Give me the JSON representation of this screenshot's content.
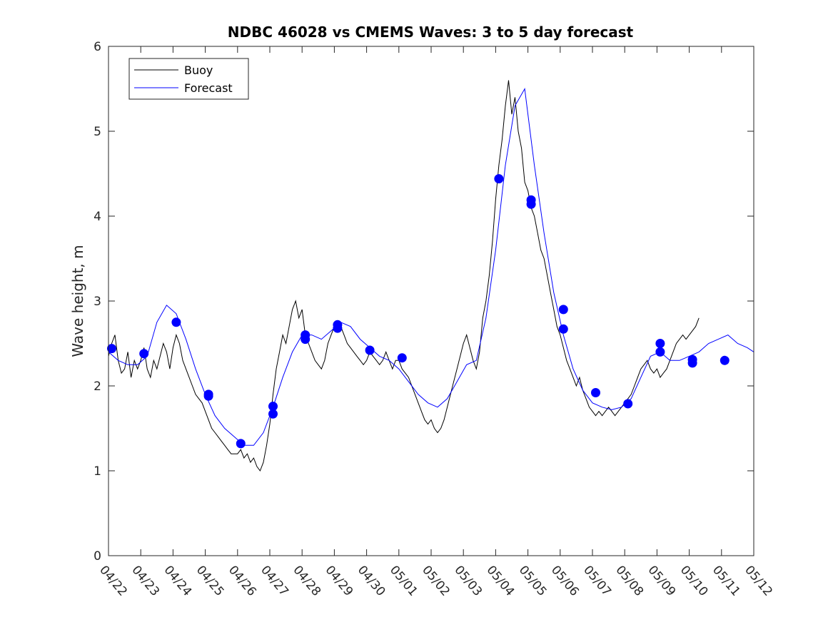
{
  "chart_data": {
    "type": "line",
    "title": "NDBC 46028 vs CMEMS Waves: 3 to 5 day forecast",
    "xlabel": "",
    "ylabel": "Wave height, m",
    "xlim": [
      "04/22",
      "05/12"
    ],
    "ylim": [
      0,
      6
    ],
    "x_ticks": [
      "04/22",
      "04/23",
      "04/24",
      "04/25",
      "04/26",
      "04/27",
      "04/28",
      "04/29",
      "04/30",
      "05/01",
      "05/02",
      "05/03",
      "05/04",
      "05/05",
      "05/06",
      "05/07",
      "05/08",
      "05/09",
      "05/10",
      "05/11",
      "05/12"
    ],
    "y_ticks": [
      0,
      1,
      2,
      3,
      4,
      5,
      6
    ],
    "legend": {
      "placement": "top-left",
      "entries": [
        {
          "label": "Buoy",
          "color": "#000000"
        },
        {
          "label": "Forecast",
          "color": "#0000ff"
        }
      ]
    },
    "colors": {
      "buoy": "#000000",
      "forecast": "#0000ff",
      "markers": "#0000ff"
    },
    "series": [
      {
        "name": "Buoy",
        "color": "#000000",
        "points": [
          [
            0.0,
            2.35
          ],
          [
            0.1,
            2.5
          ],
          [
            0.2,
            2.6
          ],
          [
            0.3,
            2.3
          ],
          [
            0.4,
            2.15
          ],
          [
            0.5,
            2.2
          ],
          [
            0.6,
            2.4
          ],
          [
            0.7,
            2.1
          ],
          [
            0.8,
            2.3
          ],
          [
            0.9,
            2.2
          ],
          [
            1.0,
            2.3
          ],
          [
            1.1,
            2.45
          ],
          [
            1.2,
            2.2
          ],
          [
            1.3,
            2.1
          ],
          [
            1.4,
            2.3
          ],
          [
            1.5,
            2.2
          ],
          [
            1.6,
            2.35
          ],
          [
            1.7,
            2.5
          ],
          [
            1.8,
            2.4
          ],
          [
            1.9,
            2.2
          ],
          [
            2.0,
            2.45
          ],
          [
            2.1,
            2.6
          ],
          [
            2.2,
            2.5
          ],
          [
            2.3,
            2.3
          ],
          [
            2.4,
            2.2
          ],
          [
            2.5,
            2.1
          ],
          [
            2.6,
            2.0
          ],
          [
            2.7,
            1.9
          ],
          [
            2.8,
            1.85
          ],
          [
            2.9,
            1.8
          ],
          [
            3.0,
            1.7
          ],
          [
            3.1,
            1.6
          ],
          [
            3.2,
            1.5
          ],
          [
            3.3,
            1.45
          ],
          [
            3.4,
            1.4
          ],
          [
            3.5,
            1.35
          ],
          [
            3.6,
            1.3
          ],
          [
            3.7,
            1.25
          ],
          [
            3.8,
            1.2
          ],
          [
            3.9,
            1.2
          ],
          [
            4.0,
            1.2
          ],
          [
            4.1,
            1.25
          ],
          [
            4.2,
            1.15
          ],
          [
            4.3,
            1.2
          ],
          [
            4.4,
            1.1
          ],
          [
            4.5,
            1.15
          ],
          [
            4.6,
            1.05
          ],
          [
            4.7,
            1.0
          ],
          [
            4.8,
            1.1
          ],
          [
            4.9,
            1.3
          ],
          [
            5.0,
            1.55
          ],
          [
            5.1,
            1.9
          ],
          [
            5.2,
            2.2
          ],
          [
            5.3,
            2.4
          ],
          [
            5.4,
            2.6
          ],
          [
            5.5,
            2.5
          ],
          [
            5.6,
            2.7
          ],
          [
            5.7,
            2.9
          ],
          [
            5.8,
            3.0
          ],
          [
            5.9,
            2.8
          ],
          [
            6.0,
            2.9
          ],
          [
            6.1,
            2.6
          ],
          [
            6.2,
            2.5
          ],
          [
            6.3,
            2.4
          ],
          [
            6.4,
            2.3
          ],
          [
            6.5,
            2.25
          ],
          [
            6.6,
            2.2
          ],
          [
            6.7,
            2.3
          ],
          [
            6.8,
            2.5
          ],
          [
            6.9,
            2.6
          ],
          [
            7.0,
            2.7
          ],
          [
            7.1,
            2.65
          ],
          [
            7.2,
            2.7
          ],
          [
            7.3,
            2.6
          ],
          [
            7.4,
            2.5
          ],
          [
            7.5,
            2.45
          ],
          [
            7.6,
            2.4
          ],
          [
            7.7,
            2.35
          ],
          [
            7.8,
            2.3
          ],
          [
            7.9,
            2.25
          ],
          [
            8.0,
            2.3
          ],
          [
            8.1,
            2.4
          ],
          [
            8.2,
            2.35
          ],
          [
            8.3,
            2.3
          ],
          [
            8.4,
            2.25
          ],
          [
            8.5,
            2.3
          ],
          [
            8.6,
            2.4
          ],
          [
            8.7,
            2.3
          ],
          [
            8.8,
            2.2
          ],
          [
            8.9,
            2.3
          ],
          [
            9.0,
            2.3
          ],
          [
            9.1,
            2.2
          ],
          [
            9.2,
            2.15
          ],
          [
            9.3,
            2.1
          ],
          [
            9.4,
            2.0
          ],
          [
            9.5,
            1.9
          ],
          [
            9.6,
            1.8
          ],
          [
            9.7,
            1.7
          ],
          [
            9.8,
            1.6
          ],
          [
            9.9,
            1.55
          ],
          [
            10.0,
            1.6
          ],
          [
            10.1,
            1.5
          ],
          [
            10.2,
            1.45
          ],
          [
            10.3,
            1.5
          ],
          [
            10.4,
            1.6
          ],
          [
            10.5,
            1.75
          ],
          [
            10.6,
            1.9
          ],
          [
            10.7,
            2.05
          ],
          [
            10.8,
            2.2
          ],
          [
            10.9,
            2.35
          ],
          [
            11.0,
            2.5
          ],
          [
            11.1,
            2.6
          ],
          [
            11.2,
            2.45
          ],
          [
            11.3,
            2.3
          ],
          [
            11.4,
            2.2
          ],
          [
            11.5,
            2.4
          ],
          [
            11.6,
            2.8
          ],
          [
            11.7,
            3.0
          ],
          [
            11.8,
            3.3
          ],
          [
            11.9,
            3.7
          ],
          [
            12.0,
            4.2
          ],
          [
            12.1,
            4.6
          ],
          [
            12.2,
            4.9
          ],
          [
            12.3,
            5.3
          ],
          [
            12.4,
            5.6
          ],
          [
            12.5,
            5.2
          ],
          [
            12.6,
            5.4
          ],
          [
            12.7,
            5.0
          ],
          [
            12.8,
            4.8
          ],
          [
            12.9,
            4.4
          ],
          [
            13.0,
            4.3
          ],
          [
            13.1,
            4.1
          ],
          [
            13.2,
            4.0
          ],
          [
            13.3,
            3.8
          ],
          [
            13.4,
            3.6
          ],
          [
            13.5,
            3.5
          ],
          [
            13.6,
            3.3
          ],
          [
            13.7,
            3.1
          ],
          [
            13.8,
            2.9
          ],
          [
            13.9,
            2.7
          ],
          [
            14.0,
            2.6
          ],
          [
            14.1,
            2.45
          ],
          [
            14.2,
            2.3
          ],
          [
            14.3,
            2.2
          ],
          [
            14.4,
            2.1
          ],
          [
            14.5,
            2.0
          ],
          [
            14.6,
            2.1
          ],
          [
            14.7,
            1.95
          ],
          [
            14.8,
            1.85
          ],
          [
            14.9,
            1.75
          ],
          [
            15.0,
            1.7
          ],
          [
            15.1,
            1.65
          ],
          [
            15.2,
            1.7
          ],
          [
            15.3,
            1.65
          ],
          [
            15.4,
            1.7
          ],
          [
            15.5,
            1.75
          ],
          [
            15.6,
            1.7
          ],
          [
            15.7,
            1.65
          ],
          [
            15.8,
            1.7
          ],
          [
            15.9,
            1.75
          ],
          [
            16.0,
            1.8
          ],
          [
            16.1,
            1.85
          ],
          [
            16.2,
            1.9
          ],
          [
            16.3,
            2.0
          ],
          [
            16.4,
            2.1
          ],
          [
            16.5,
            2.2
          ],
          [
            16.6,
            2.25
          ],
          [
            16.7,
            2.3
          ],
          [
            16.8,
            2.2
          ],
          [
            16.9,
            2.15
          ],
          [
            17.0,
            2.2
          ],
          [
            17.1,
            2.1
          ],
          [
            17.2,
            2.15
          ],
          [
            17.3,
            2.2
          ],
          [
            17.4,
            2.3
          ],
          [
            17.5,
            2.4
          ],
          [
            17.6,
            2.5
          ],
          [
            17.7,
            2.55
          ],
          [
            17.8,
            2.6
          ],
          [
            17.9,
            2.55
          ],
          [
            18.0,
            2.6
          ],
          [
            18.1,
            2.65
          ],
          [
            18.2,
            2.7
          ],
          [
            18.3,
            2.8
          ]
        ]
      },
      {
        "name": "Forecast",
        "color": "#0000ff",
        "points": [
          [
            0.0,
            2.4
          ],
          [
            0.3,
            2.3
          ],
          [
            0.6,
            2.25
          ],
          [
            0.9,
            2.25
          ],
          [
            1.2,
            2.35
          ],
          [
            1.5,
            2.75
          ],
          [
            1.8,
            2.95
          ],
          [
            2.1,
            2.85
          ],
          [
            2.4,
            2.55
          ],
          [
            2.7,
            2.2
          ],
          [
            3.0,
            1.9
          ],
          [
            3.3,
            1.65
          ],
          [
            3.6,
            1.5
          ],
          [
            3.9,
            1.4
          ],
          [
            4.2,
            1.3
          ],
          [
            4.5,
            1.3
          ],
          [
            4.8,
            1.45
          ],
          [
            5.1,
            1.75
          ],
          [
            5.4,
            2.1
          ],
          [
            5.7,
            2.4
          ],
          [
            6.0,
            2.6
          ],
          [
            6.3,
            2.6
          ],
          [
            6.6,
            2.55
          ],
          [
            6.9,
            2.65
          ],
          [
            7.2,
            2.75
          ],
          [
            7.5,
            2.7
          ],
          [
            7.8,
            2.55
          ],
          [
            8.1,
            2.45
          ],
          [
            8.4,
            2.35
          ],
          [
            8.7,
            2.3
          ],
          [
            9.0,
            2.2
          ],
          [
            9.3,
            2.05
          ],
          [
            9.6,
            1.9
          ],
          [
            9.9,
            1.8
          ],
          [
            10.2,
            1.75
          ],
          [
            10.5,
            1.85
          ],
          [
            10.8,
            2.05
          ],
          [
            11.1,
            2.25
          ],
          [
            11.4,
            2.3
          ],
          [
            11.7,
            2.8
          ],
          [
            12.0,
            3.6
          ],
          [
            12.3,
            4.6
          ],
          [
            12.6,
            5.3
          ],
          [
            12.9,
            5.5
          ],
          [
            13.2,
            4.6
          ],
          [
            13.5,
            3.8
          ],
          [
            13.8,
            3.1
          ],
          [
            14.1,
            2.6
          ],
          [
            14.4,
            2.2
          ],
          [
            14.7,
            1.95
          ],
          [
            15.0,
            1.8
          ],
          [
            15.3,
            1.75
          ],
          [
            15.6,
            1.72
          ],
          [
            15.9,
            1.75
          ],
          [
            16.2,
            1.85
          ],
          [
            16.5,
            2.1
          ],
          [
            16.8,
            2.35
          ],
          [
            17.1,
            2.4
          ],
          [
            17.4,
            2.3
          ],
          [
            17.7,
            2.3
          ],
          [
            18.0,
            2.35
          ],
          [
            18.3,
            2.4
          ],
          [
            18.6,
            2.5
          ],
          [
            18.9,
            2.55
          ],
          [
            19.2,
            2.6
          ],
          [
            19.5,
            2.5
          ],
          [
            19.8,
            2.45
          ],
          [
            20.0,
            2.4
          ]
        ]
      }
    ],
    "markers": [
      [
        0.1,
        2.44
      ],
      [
        1.1,
        2.38
      ],
      [
        2.1,
        2.75
      ],
      [
        3.1,
        1.9
      ],
      [
        3.1,
        1.88
      ],
      [
        4.1,
        1.32
      ],
      [
        5.1,
        1.76
      ],
      [
        5.1,
        1.67
      ],
      [
        6.1,
        2.6
      ],
      [
        6.1,
        2.55
      ],
      [
        7.1,
        2.72
      ],
      [
        7.1,
        2.68
      ],
      [
        8.1,
        2.42
      ],
      [
        9.1,
        2.33
      ],
      [
        12.1,
        4.44
      ],
      [
        13.1,
        4.19
      ],
      [
        13.1,
        4.14
      ],
      [
        14.1,
        2.9
      ],
      [
        14.1,
        2.67
      ],
      [
        15.1,
        1.92
      ],
      [
        16.1,
        1.79
      ],
      [
        17.1,
        2.5
      ],
      [
        17.1,
        2.4
      ],
      [
        18.1,
        2.31
      ],
      [
        18.1,
        2.27
      ],
      [
        19.1,
        2.3
      ]
    ]
  }
}
